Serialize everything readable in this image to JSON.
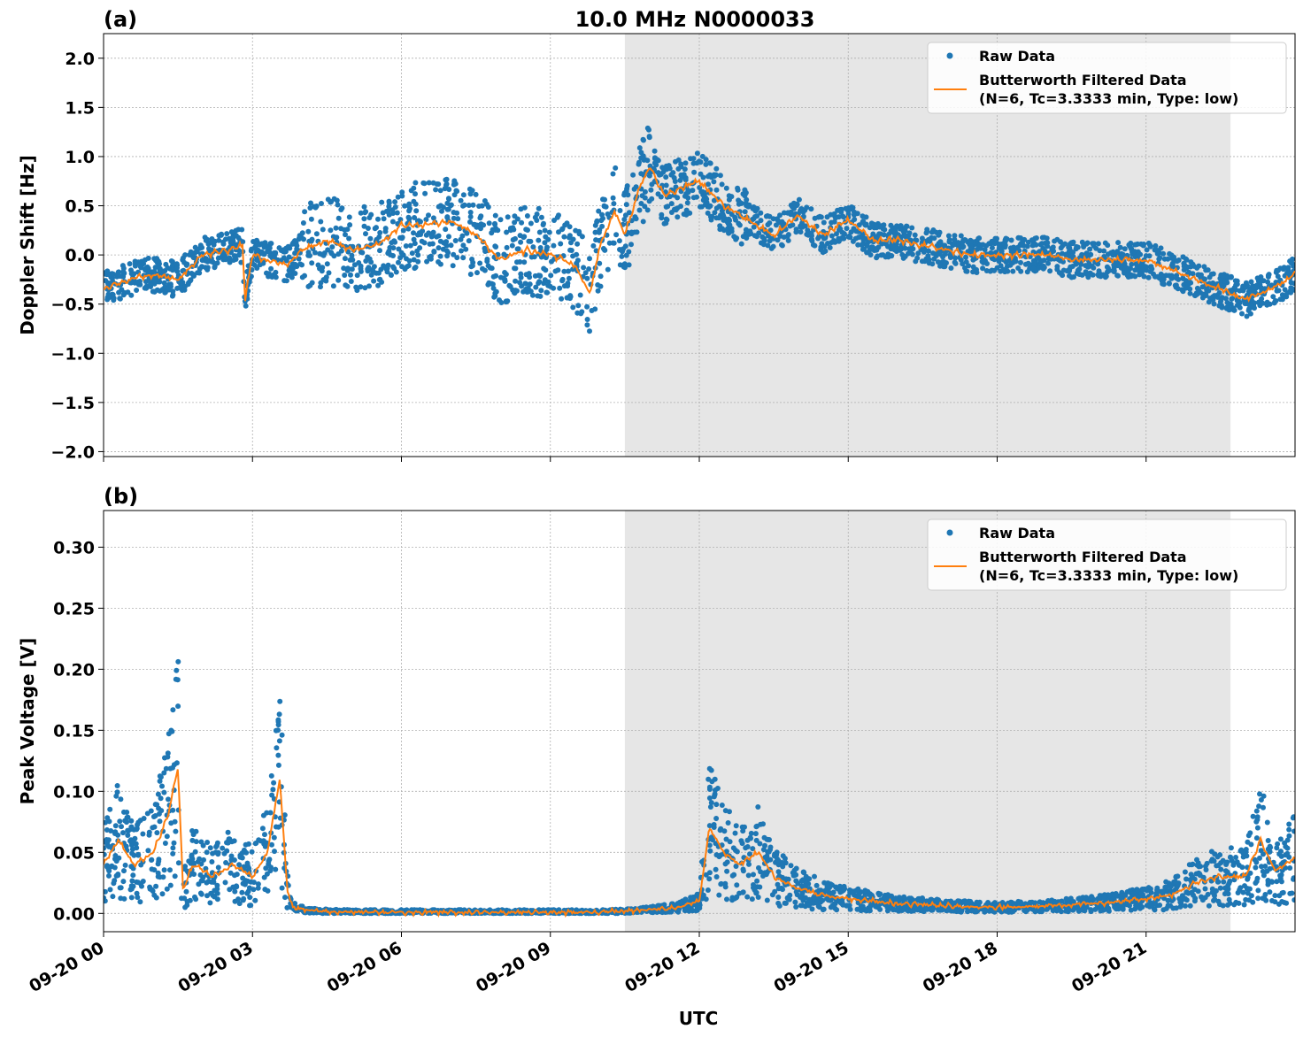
{
  "title": "10.0 MHz N0000033",
  "x_axis_label": "UTC",
  "x_tick_labels": [
    "09-20 00",
    "09-20 03",
    "09-20 06",
    "09-20 09",
    "09-20 12",
    "09-20 15",
    "09-20 18",
    "09-20 21"
  ],
  "colors": {
    "raw": "#1f77b4",
    "filtered": "#ff7f0e",
    "shade": "#e6e6e6",
    "grid": "#b0b0b0"
  },
  "legend": {
    "raw_label": "Raw Data",
    "filtered_line1": "Butterworth Filtered Data",
    "filtered_line2": "(N=6, Tc=3.3333 min, Type: low)"
  },
  "chart_data": [
    {
      "type": "scatter",
      "panel": "(a)",
      "title": "10.0 MHz N0000033",
      "ylabel": "Doppler Shift [Hz]",
      "xlabel": "",
      "x_range_hours": [
        0,
        24
      ],
      "ylim": [
        -2.05,
        2.25
      ],
      "yticks": [
        -2.0,
        -1.5,
        -1.0,
        -0.5,
        0.0,
        0.5,
        1.0,
        1.5,
        2.0
      ],
      "ytick_labels": [
        "−2.0",
        "−1.5",
        "−1.0",
        "−0.5",
        "0.0",
        "0.5",
        "1.0",
        "1.5",
        "2.0"
      ],
      "shaded_region_hours": [
        10.5,
        22.7
      ],
      "grid": true,
      "legend_position": "top-right",
      "series": [
        {
          "name": "Butterworth Filtered Data (N=6, Tc=3.3333 min, Type: low)",
          "x": [
            0,
            0.5,
            1.0,
            1.5,
            2.0,
            2.5,
            2.8,
            2.85,
            3.0,
            3.3,
            3.7,
            4.0,
            4.5,
            5.0,
            5.5,
            6.0,
            6.5,
            7.0,
            7.5,
            8.0,
            8.5,
            9.0,
            9.5,
            9.8,
            10.0,
            10.3,
            10.5,
            10.8,
            11.0,
            11.3,
            11.7,
            12.0,
            12.5,
            13.0,
            13.5,
            14.0,
            14.5,
            15.0,
            15.5,
            16.0,
            16.5,
            17.0,
            17.5,
            18.0,
            18.5,
            19.0,
            19.5,
            20.0,
            20.5,
            21.0,
            21.5,
            22.0,
            22.5,
            23.0,
            23.5,
            24.0
          ],
          "y": [
            -0.35,
            -0.25,
            -0.2,
            -0.25,
            0.0,
            0.05,
            0.1,
            -0.45,
            0.0,
            -0.05,
            -0.1,
            0.05,
            0.15,
            0.05,
            0.1,
            0.3,
            0.3,
            0.35,
            0.2,
            -0.05,
            0.05,
            0.0,
            -0.1,
            -0.4,
            0.1,
            0.45,
            0.2,
            0.7,
            0.9,
            0.6,
            0.7,
            0.75,
            0.5,
            0.35,
            0.2,
            0.4,
            0.2,
            0.35,
            0.15,
            0.15,
            0.1,
            0.05,
            0.0,
            0.0,
            0.0,
            0.0,
            -0.05,
            -0.05,
            -0.05,
            -0.05,
            -0.15,
            -0.25,
            -0.35,
            -0.45,
            -0.35,
            -0.2
          ]
        },
        {
          "name": "Raw Data",
          "note_source": "scatter band around filtered line"
        }
      ]
    },
    {
      "type": "scatter",
      "panel": "(b)",
      "title": "",
      "ylabel": "Peak Voltage [V]",
      "xlabel": "UTC",
      "x_range_hours": [
        0,
        24
      ],
      "ylim": [
        -0.015,
        0.33
      ],
      "yticks": [
        0.0,
        0.05,
        0.1,
        0.15,
        0.2,
        0.25,
        0.3
      ],
      "ytick_labels": [
        "0.00",
        "0.05",
        "0.10",
        "0.15",
        "0.20",
        "0.25",
        "0.30"
      ],
      "shaded_region_hours": [
        10.5,
        22.7
      ],
      "grid": true,
      "legend_position": "top-right",
      "series": [
        {
          "name": "Butterworth Filtered Data (N=6, Tc=3.3333 min, Type: low)",
          "x": [
            0,
            0.3,
            0.6,
            1.0,
            1.3,
            1.5,
            1.6,
            1.8,
            2.2,
            2.6,
            3.0,
            3.3,
            3.55,
            3.7,
            3.8,
            4.2,
            5.0,
            7.0,
            9.0,
            10.0,
            10.5,
            11.0,
            11.6,
            12.0,
            12.2,
            12.5,
            12.8,
            13.2,
            13.5,
            14.0,
            14.5,
            15.0,
            16.0,
            17.0,
            18.0,
            19.0,
            20.0,
            21.0,
            21.5,
            22.0,
            22.5,
            23.0,
            23.3,
            23.6,
            24.0
          ],
          "y": [
            0.04,
            0.06,
            0.04,
            0.05,
            0.08,
            0.12,
            0.02,
            0.04,
            0.03,
            0.04,
            0.03,
            0.05,
            0.11,
            0.02,
            0.005,
            0.002,
            0.001,
            0.001,
            0.001,
            0.001,
            0.002,
            0.003,
            0.005,
            0.01,
            0.07,
            0.05,
            0.04,
            0.05,
            0.03,
            0.02,
            0.015,
            0.012,
            0.008,
            0.006,
            0.005,
            0.006,
            0.008,
            0.012,
            0.015,
            0.025,
            0.03,
            0.03,
            0.06,
            0.035,
            0.045
          ]
        },
        {
          "name": "Raw Data",
          "note_source": "scatter band around filtered line"
        }
      ]
    }
  ]
}
